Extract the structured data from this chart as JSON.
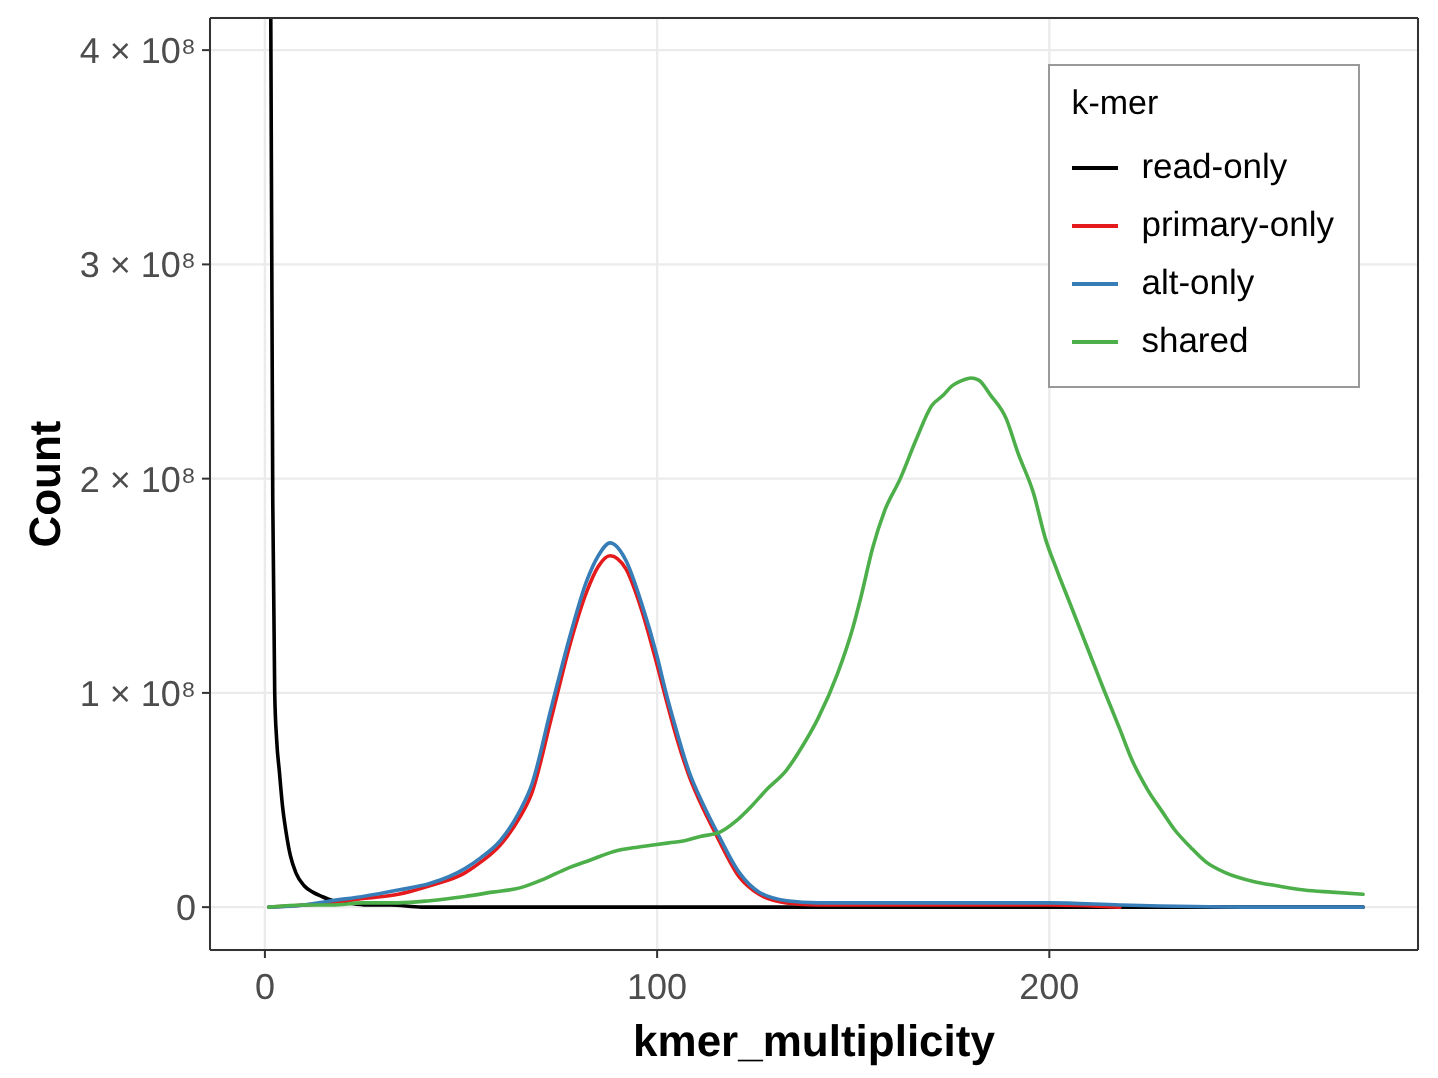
{
  "chart_data": {
    "type": "line",
    "xlabel": "kmer_multiplicity",
    "ylabel": "Count",
    "legend_title": "k-mer",
    "legend": "top right",
    "grid": true,
    "xlim": [
      -14,
      294
    ],
    "xticks": [
      0,
      100,
      200
    ],
    "ylim": [
      -20000000,
      415000000
    ],
    "yticks": [
      0,
      {
        "value": 100000000,
        "label": "1 × 10⁸"
      },
      {
        "value": 200000000,
        "label": "2 × 10⁸"
      },
      {
        "value": 300000000,
        "label": "3 × 10⁸"
      },
      {
        "value": 400000000,
        "label": "4 × 10⁸"
      }
    ],
    "series": [
      {
        "name": "read-only",
        "color": "#000000",
        "x": [
          1.5,
          2,
          2.5,
          3,
          3.7,
          4.5,
          5.4,
          6.5,
          7.9,
          10,
          12.2,
          14.5,
          17.3,
          21,
          26,
          32,
          40,
          55,
          80,
          120,
          180,
          240,
          280
        ],
        "values": [
          415000000,
          190000000,
          100000000,
          78000000,
          63000000,
          47000000,
          35000000,
          24000000,
          16000000,
          10000000,
          7000000,
          5000000,
          3000000,
          2000000,
          1000000,
          1000000,
          0,
          0,
          0,
          0,
          0,
          0,
          0
        ]
      },
      {
        "name": "primary-only",
        "color": "#e41a1c",
        "x": [
          1,
          10,
          17,
          25,
          34,
          42,
          51,
          55,
          60,
          65,
          68,
          73,
          78,
          82,
          85,
          88,
          92,
          96,
          100,
          102,
          105,
          108,
          112,
          115,
          121,
          126,
          133,
          141,
          160,
          184,
          200,
          218
        ],
        "values": [
          0,
          1000000,
          2000000,
          4000000,
          6000000,
          10000000,
          16000000,
          21000000,
          29000000,
          42000000,
          53000000,
          88000000,
          124000000,
          147000000,
          159000000,
          164000000,
          158000000,
          139000000,
          113000000,
          99000000,
          79000000,
          62000000,
          45000000,
          34000000,
          14000000,
          6000000,
          2000000,
          1000000,
          1000000,
          1000000,
          1000000,
          0
        ]
      },
      {
        "name": "alt-only",
        "color": "#377eb8",
        "x": [
          1,
          10,
          17,
          25,
          34,
          42,
          51,
          55,
          60,
          65,
          68,
          73,
          78,
          82,
          85,
          88,
          92,
          96,
          100,
          102,
          105,
          108,
          112,
          115,
          121,
          126,
          133,
          141,
          160,
          184,
          200,
          218,
          250,
          280
        ],
        "values": [
          0,
          1000000,
          3000000,
          5000000,
          8000000,
          11000000,
          18000000,
          23000000,
          31000000,
          45000000,
          57000000,
          93000000,
          128000000,
          152000000,
          164000000,
          170000000,
          162000000,
          142000000,
          117000000,
          102000000,
          82000000,
          64000000,
          47000000,
          36000000,
          16000000,
          7000000,
          3000000,
          2000000,
          2000000,
          2000000,
          2000000,
          1000000,
          0,
          0
        ]
      },
      {
        "name": "shared",
        "color": "#4daf4a",
        "x": [
          1,
          10,
          17,
          25,
          34,
          42,
          51,
          58,
          65,
          71,
          77,
          83,
          89,
          95,
          99,
          103,
          107,
          111,
          116,
          120,
          124,
          128,
          133,
          137,
          141,
          146,
          150,
          152,
          155,
          158,
          162,
          166,
          170,
          173,
          175,
          178,
          180,
          182,
          185,
          189,
          192,
          196,
          199,
          202,
          205,
          208,
          211,
          214,
          218,
          221,
          225,
          229,
          232,
          236,
          240,
          245,
          252,
          258,
          265,
          272,
          280
        ],
        "values": [
          0,
          1000000,
          1000000,
          2000000,
          2000000,
          3000000,
          5000000,
          7000000,
          9000000,
          13000000,
          18000000,
          22000000,
          26000000,
          28000000,
          29000000,
          30000000,
          31000000,
          33000000,
          35000000,
          40000000,
          47000000,
          55000000,
          64000000,
          75000000,
          88000000,
          109000000,
          131000000,
          145000000,
          168000000,
          185000000,
          200000000,
          218000000,
          234000000,
          239000000,
          243000000,
          246000000,
          247000000,
          246000000,
          239000000,
          228000000,
          212000000,
          193000000,
          172000000,
          157000000,
          143000000,
          129000000,
          115000000,
          101000000,
          83000000,
          69000000,
          55000000,
          44000000,
          36000000,
          28000000,
          21000000,
          16000000,
          12000000,
          10000000,
          8000000,
          7000000,
          6000000
        ]
      }
    ]
  }
}
